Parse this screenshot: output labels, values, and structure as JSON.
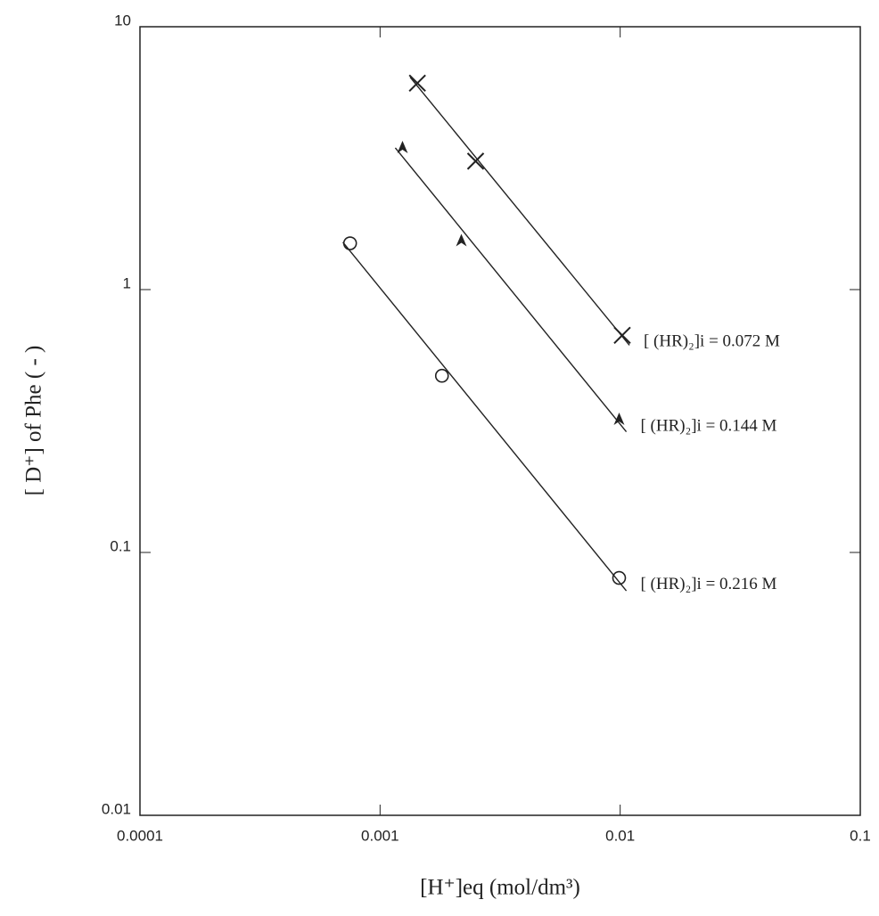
{
  "chart_data": {
    "type": "scatter",
    "x_label": "[H⁺]eq  (mol/dm³)",
    "y_label": "[ D⁺] of Phe  ( - )",
    "log_x": true,
    "log_y": true,
    "xlim": [
      0.0001,
      0.1
    ],
    "xticks": [
      0.0001,
      0.001,
      0.01,
      0.1
    ],
    "ylim": [
      0.01,
      10
    ],
    "yticks": [
      0.01,
      0.1,
      1,
      10
    ],
    "series": [
      {
        "name": "[ (HR)₂]i = 0.072 M",
        "color": "#222222",
        "marker": "x",
        "fit_line": true,
        "x": [
          0.00143,
          0.0025,
          0.0102
        ],
        "values": [
          6.1,
          3.08,
          0.67
        ]
      },
      {
        "name": "[ (HR)₂]i = 0.144 M",
        "color": "#222222",
        "marker": "triangle",
        "fit_line": true,
        "x": [
          0.00124,
          0.00218,
          0.0099
        ],
        "values": [
          3.46,
          1.53,
          0.32
        ]
      },
      {
        "name": "[ (HR)₂]i = 0.216 M",
        "color": "#222222",
        "marker": "circle",
        "fit_line": true,
        "x": [
          0.00075,
          0.00181,
          0.0099
        ],
        "values": [
          1.5,
          0.47,
          0.08
        ]
      }
    ]
  }
}
